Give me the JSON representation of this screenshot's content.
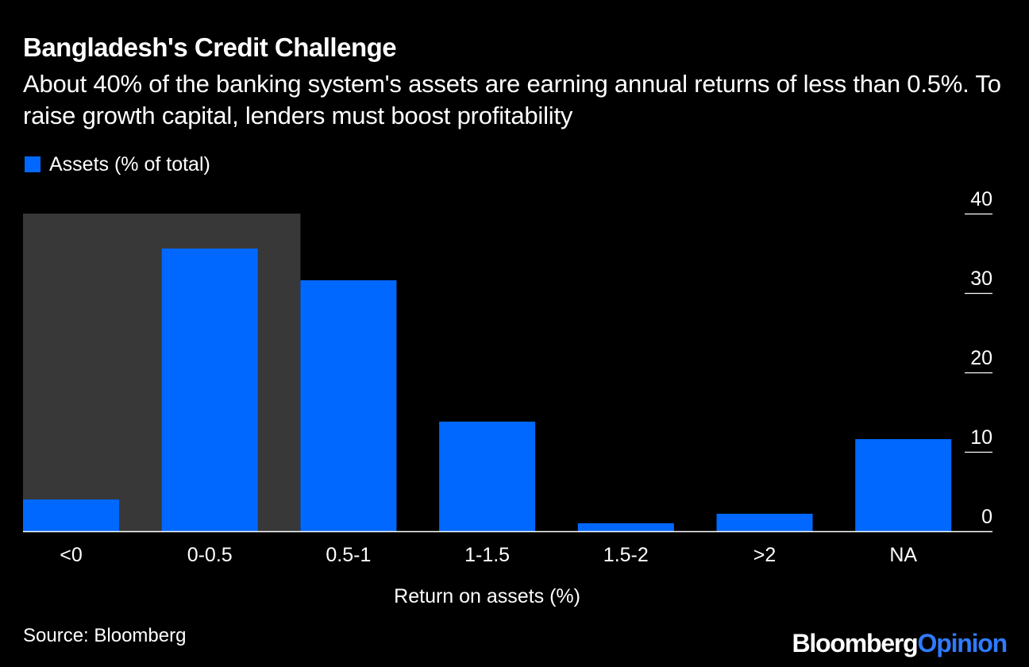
{
  "colors": {
    "background": "#000000",
    "bar": "#0068ff",
    "highlight": "#383838",
    "text": "#ffffff",
    "brand_accent": "#2f7bff"
  },
  "header": {
    "title": "Bangladesh's Credit Challenge",
    "subtitle": "About 40% of the banking system's assets are earning annual returns of less than 0.5%. To raise growth capital, lenders must boost profitability"
  },
  "legend": {
    "label": "Assets (% of total)"
  },
  "footer": {
    "source": "Source: Bloomberg",
    "brand_main": "Bloomberg",
    "brand_accent": "Opinion"
  },
  "chart_data": {
    "type": "bar",
    "title": "Bangladesh's Credit Challenge",
    "xlabel": "Return on assets (%)",
    "ylabel": "",
    "categories": [
      "<0",
      "0-0.5",
      "0.5-1",
      "1-1.5",
      "1.5-2",
      ">2",
      "NA"
    ],
    "series": [
      {
        "name": "Assets (% of total)",
        "values": [
          4,
          35.6,
          31.6,
          13.8,
          1,
          2.2,
          11.6
        ]
      }
    ],
    "ylim": [
      0,
      40
    ],
    "yticks": [
      0,
      10,
      20,
      30,
      40
    ],
    "y_axis_side": "right",
    "grid": false,
    "highlight_categories": [
      "<0",
      "0-0.5"
    ],
    "legend_position": "top-left"
  }
}
